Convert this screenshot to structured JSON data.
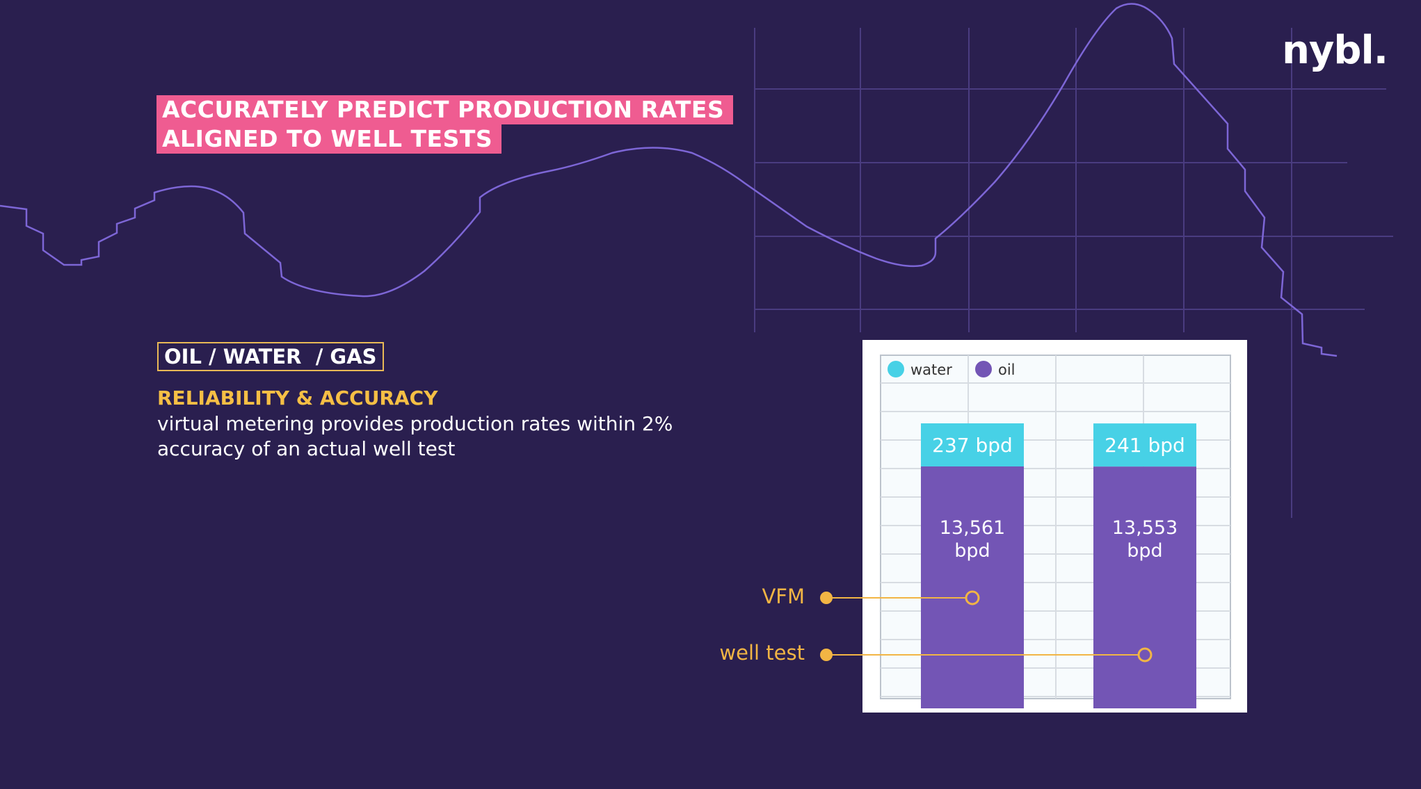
{
  "brand": {
    "logo_text": "nybl."
  },
  "headline": {
    "line1": "ACCURATELY PREDICT PRODUCTION RATES",
    "line2": "ALIGNED TO WELL TESTS"
  },
  "tag": "OIL / WATER  / GAS",
  "reliability": {
    "title": "RELIABILITY & ACCURACY",
    "body": "virtual metering provides production rates within 2% accuracy of an actual well test"
  },
  "colors": {
    "background": "#2a1f4f",
    "water": "#47d1e6",
    "oil": "#7355b5",
    "accent_pink": "#ef5c91",
    "accent_yellow": "#f2b544",
    "decor_line": "#7d66d6"
  },
  "chart_data": {
    "type": "bar",
    "stacked": true,
    "categories": [
      "VFM",
      "well test"
    ],
    "series": [
      {
        "name": "oil",
        "values": [
          13561,
          13553
        ],
        "labels": [
          "13,561 bpd",
          "13,553 bpd"
        ],
        "color": "#7355b5"
      },
      {
        "name": "water",
        "values": [
          237,
          241
        ],
        "labels": [
          "237 bpd",
          "241 bpd"
        ],
        "color": "#47d1e6"
      }
    ],
    "legend": {
      "placement": "top-left",
      "items": [
        "water",
        "oil"
      ]
    },
    "grid": true
  }
}
